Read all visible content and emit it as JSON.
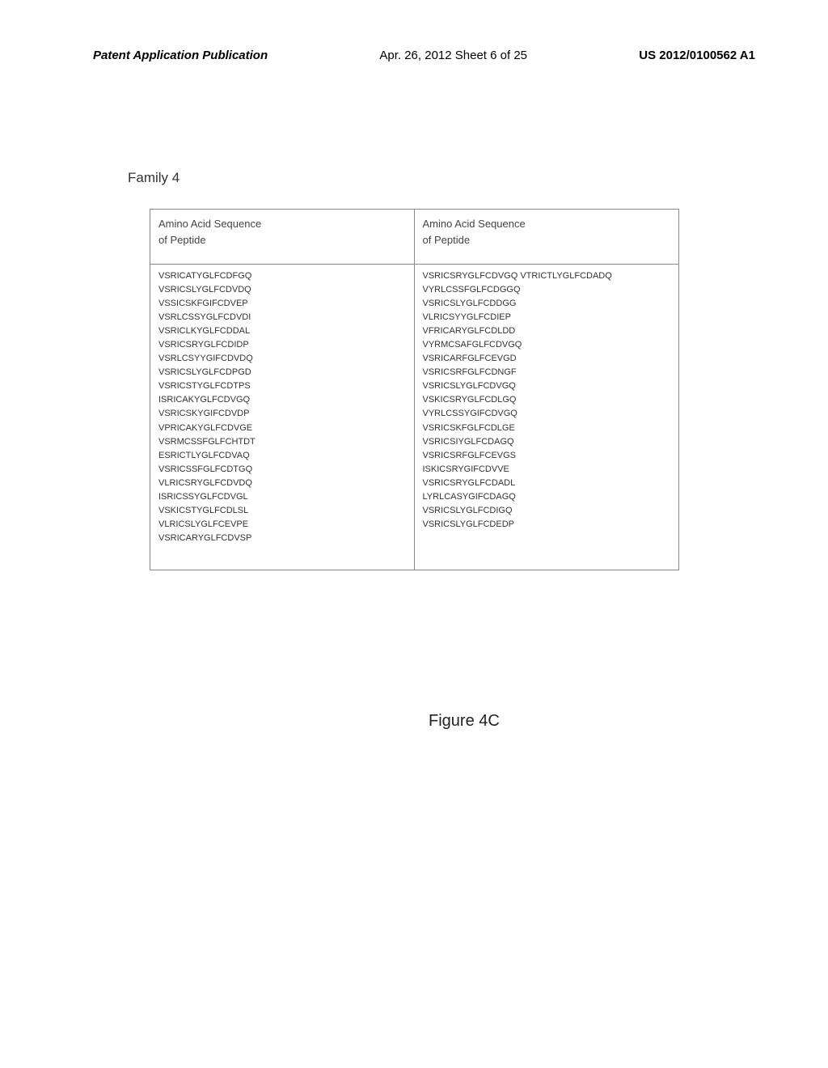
{
  "header": {
    "left": "Patent Application Publication",
    "center": "Apr. 26, 2012  Sheet 6 of 25",
    "right": "US 2012/0100562 A1"
  },
  "family_label": "Family 4",
  "table": {
    "header": {
      "col1_line1": "Amino Acid Sequence",
      "col1_line2": "of Peptide",
      "col2_line1": "Amino Acid Sequence",
      "col2_line2": "of Peptide"
    },
    "col1_sequences": [
      "VSRICATYGLFCDFGQ",
      "VSRICSLYGLFCDVDQ",
      "VSSICSKFGIFCDVEP",
      "VSRLCSSYGLFCDVDI",
      "VSRICLKYGLFCDDAL",
      "VSRICSRYGLFCDIDP",
      "VSRLCSYYGIFCDVDQ",
      "VSRICSLYGLFCDPGD",
      "VSRICSTYGLFCDTPS",
      "ISRICAKYGLFCDVGQ",
      "VSRICSKYGIFCDVDP",
      "VPRICAKYGLFCDVGE",
      "VSRMCSSFGLFCHTDT",
      "ESRICTLYGLFCDVAQ",
      "VSRICSSFGLFCDTGQ",
      "VLRICSRYGLFCDVDQ",
      "ISRICSSYGLFCDVGL",
      "VSKICSTYGLFCDLSL",
      "VLRICSLYGLFCEVPE",
      "VSRICARYGLFCDVSP"
    ],
    "col2_sequences": [
      "VSRICSRYGLFCDVGQ VTRICTLYGLFCDADQ",
      "VYRLCSSFGLFCDGGQ",
      "VSRICSLYGLFCDDGG",
      "VLRICSYYGLFCDIEP",
      "VFRICARYGLFCDLDD",
      "VYRMCSAFGLFCDVGQ",
      "VSRICARFGLFCEVGD",
      "VSRICSRFGLFCDNGF",
      "VSRICSLYGLFCDVGQ",
      "VSKICSRYGLFCDLGQ",
      "VYRLCSSYGIFCDVGQ",
      " VSRICSKFGLFCDLGE",
      "VSRICSIYGLFCDAGQ",
      "VSRICSRFGLFCEVGS",
      "ISKICSRYGIFCDVVE",
      "VSRICSRYGLFCDADL",
      "LYRLCASYGIFCDAGQ",
      "VSRICSLYGLFCDIGQ",
      "VSRICSLYGLFCDEDP"
    ]
  },
  "figure_caption": "Figure 4C",
  "style": {
    "background_color": "#ffffff",
    "border_color": "#888888",
    "text_color": "#333333",
    "header_fontsize": 15,
    "family_fontsize": 17,
    "table_header_fontsize": 13,
    "sequence_fontsize": 11,
    "caption_fontsize": 20
  }
}
